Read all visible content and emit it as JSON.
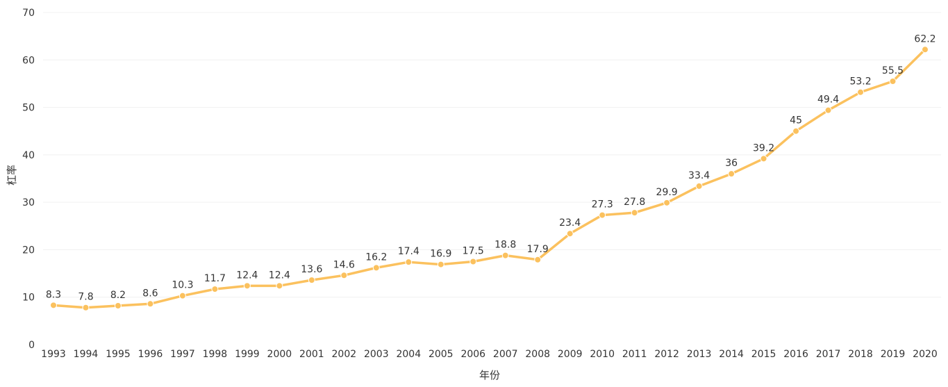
{
  "chart_data": {
    "type": "line",
    "title": "",
    "xlabel": "年份",
    "ylabel": "杠率",
    "ylim": [
      0,
      70
    ],
    "yticks": [
      0,
      10,
      20,
      30,
      40,
      50,
      60,
      70
    ],
    "grid": true,
    "x": [
      "1993",
      "1994",
      "1995",
      "1996",
      "1997",
      "1998",
      "1999",
      "2000",
      "2001",
      "2002",
      "2003",
      "2004",
      "2005",
      "2006",
      "2007",
      "2008",
      "2009",
      "2010",
      "2011",
      "2012",
      "2013",
      "2014",
      "2015",
      "2016",
      "2017",
      "2018",
      "2019",
      "2020"
    ],
    "series": [
      {
        "values": [
          8.3,
          7.8,
          8.2,
          8.6,
          10.3,
          11.7,
          12.4,
          12.4,
          13.6,
          14.6,
          16.2,
          17.4,
          16.9,
          17.5,
          18.8,
          17.9,
          23.4,
          27.3,
          27.8,
          29.9,
          33.4,
          36,
          39.2,
          45,
          49.4,
          53.2,
          55.5,
          62.2
        ],
        "labels": [
          "8.3",
          "7.8",
          "8.2",
          "8.6",
          "10.3",
          "11.7",
          "12.4",
          "12.4",
          "13.6",
          "14.6",
          "16.2",
          "17.4",
          "16.9",
          "17.5",
          "18.8",
          "17.9",
          "23.4",
          "27.3",
          "27.8",
          "29.9",
          "33.4",
          "36",
          "39.2",
          "45",
          "49.4",
          "53.2",
          "55.5",
          "62.2"
        ],
        "color": "#fbc15e"
      }
    ]
  }
}
